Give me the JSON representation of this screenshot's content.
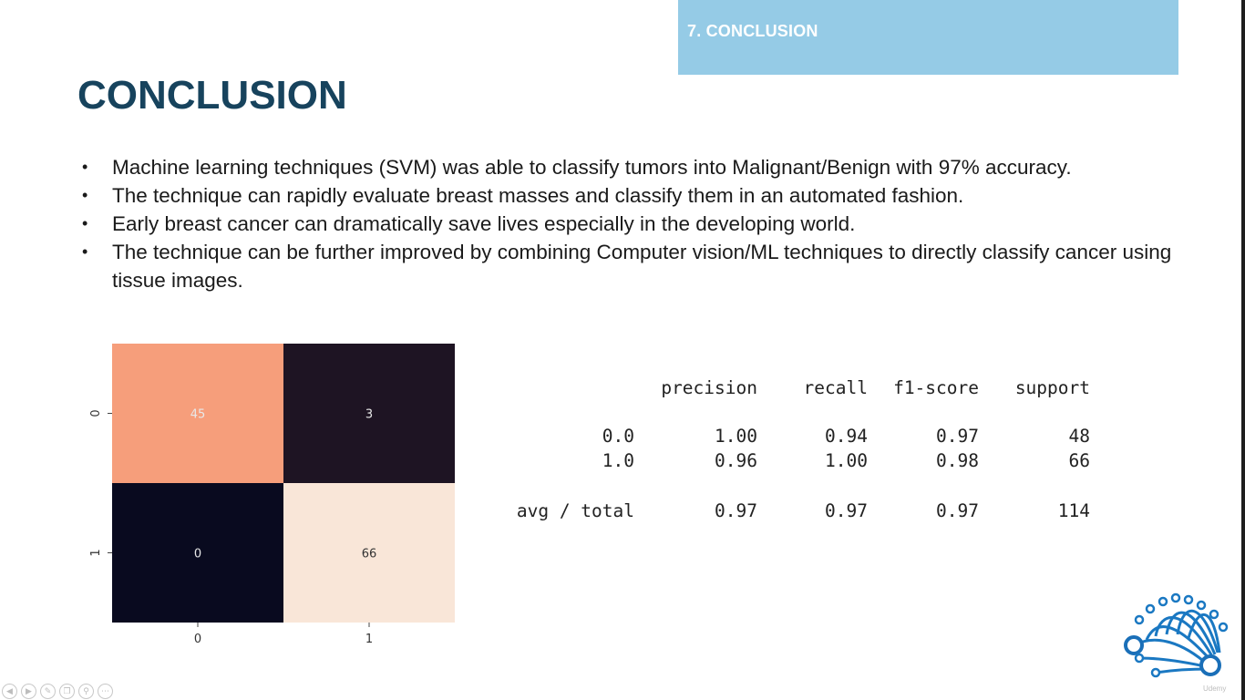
{
  "banner": {
    "label": "7. CONCLUSION",
    "color": "#95cbe6"
  },
  "title": "CONCLUSION",
  "bullets": [
    "Machine learning techniques (SVM) was able to classify tumors into Malignant/Benign with 97% accuracy.",
    "The technique can rapidly evaluate breast masses and classify them in an automated fashion.",
    "Early breast cancer can dramatically save lives especially in the developing world.",
    "The technique can be further improved by combining Computer vision/ML techniques to directly classify cancer using tissue images."
  ],
  "chart_data": {
    "type": "heatmap",
    "x_tick_labels": [
      "0",
      "1"
    ],
    "y_tick_labels": [
      "0",
      "1"
    ],
    "values": [
      [
        45,
        3
      ],
      [
        0,
        66
      ]
    ],
    "colors": {
      "high": "#f9e6d8",
      "mid": "#f57546",
      "low": "#090a1f"
    }
  },
  "report": {
    "headers": [
      "",
      "precision",
      "recall",
      "f1-score",
      "support"
    ],
    "rows": [
      [
        "0.0",
        "1.00",
        "0.94",
        "0.97",
        "48"
      ],
      [
        "1.0",
        "0.96",
        "1.00",
        "0.98",
        "66"
      ]
    ],
    "total_row": [
      "avg / total",
      "0.97",
      "0.97",
      "0.97",
      "114"
    ]
  },
  "logo": {
    "text": "Udemy",
    "icon": "circuit-tree-logo"
  },
  "player_controls": [
    {
      "name": "previous-icon",
      "glyph": "◀"
    },
    {
      "name": "next-icon",
      "glyph": "▶"
    },
    {
      "name": "pen-icon",
      "glyph": "✎"
    },
    {
      "name": "copy-icon",
      "glyph": "❐"
    },
    {
      "name": "zoom-icon",
      "glyph": "⚲"
    },
    {
      "name": "more-icon",
      "glyph": "⋯"
    }
  ]
}
